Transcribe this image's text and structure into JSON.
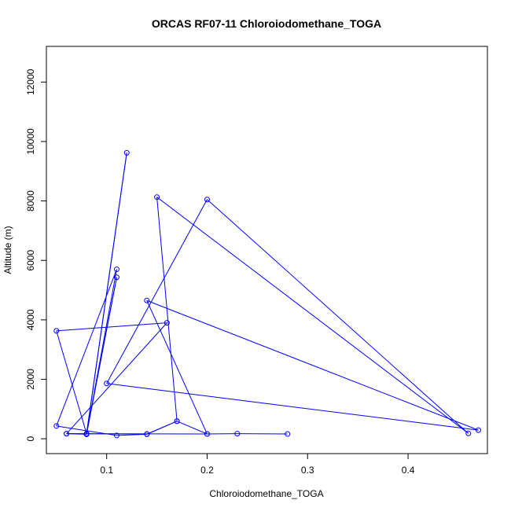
{
  "chart_data": {
    "type": "scatter",
    "title": "ORCAS RF07-11 Chloroiodomethane_TOGA",
    "xlabel": "Chloroiodomethane_TOGA",
    "ylabel": "Altitude (m)",
    "xlim": [
      0.04,
      0.479
    ],
    "ylim": [
      -500,
      13200
    ],
    "x_ticks": [
      0.1,
      0.2,
      0.3,
      0.4
    ],
    "x_tick_labels": [
      "0.1",
      "0.2",
      "0.3",
      "0.4"
    ],
    "y_ticks": [
      0,
      2000,
      4000,
      6000,
      8000,
      10000,
      12000
    ],
    "y_tick_labels": [
      "0",
      "2000",
      "4000",
      "6000",
      "8000",
      "10000",
      "12000"
    ],
    "grid": false,
    "series": [
      {
        "color": "#0000ff",
        "marker": "open-circle",
        "line": true,
        "points": [
          {
            "x": 0.08,
            "y": 150
          },
          {
            "x": 0.06,
            "y": 170
          },
          {
            "x": 0.14,
            "y": 160
          },
          {
            "x": 0.17,
            "y": 590
          },
          {
            "x": 0.14,
            "y": 150
          },
          {
            "x": 0.11,
            "y": 110
          },
          {
            "x": 0.05,
            "y": 430
          },
          {
            "x": 0.11,
            "y": 5700
          },
          {
            "x": 0.08,
            "y": 150
          },
          {
            "x": 0.11,
            "y": 5430
          },
          {
            "x": 0.08,
            "y": 170
          },
          {
            "x": 0.12,
            "y": 9620
          },
          {
            "x": 0.08,
            "y": 170
          },
          {
            "x": 0.05,
            "y": 3630
          },
          {
            "x": 0.16,
            "y": 3900
          },
          {
            "x": 0.06,
            "y": 170
          },
          {
            "x": 0.2,
            "y": 160
          },
          {
            "x": 0.14,
            "y": 4650
          },
          {
            "x": 0.47,
            "y": 290
          },
          {
            "x": 0.1,
            "y": 1860
          },
          {
            "x": 0.2,
            "y": 8050
          },
          {
            "x": 0.46,
            "y": 180
          },
          {
            "x": 0.15,
            "y": 8130
          },
          {
            "x": 0.17,
            "y": 590
          },
          {
            "x": 0.2,
            "y": 160
          },
          {
            "x": 0.23,
            "y": 170
          },
          {
            "x": 0.28,
            "y": 160
          }
        ]
      }
    ]
  }
}
